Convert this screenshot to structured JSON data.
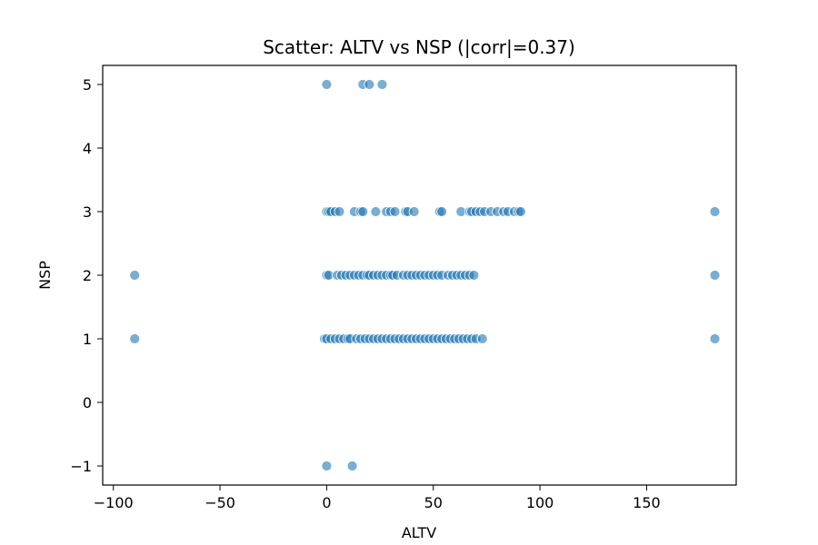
{
  "chart_data": {
    "type": "scatter",
    "title": "Scatter: ALTV vs NSP (|corr|=0.37)",
    "xlabel": "ALTV",
    "ylabel": "NSP",
    "xlim": [
      -105,
      192
    ],
    "ylim": [
      -1.3,
      5.3
    ],
    "xticks": [
      -100,
      -50,
      0,
      50,
      100,
      150
    ],
    "xtick_labels": [
      "−100",
      "−50",
      "0",
      "50",
      "100",
      "150"
    ],
    "yticks": [
      -1,
      0,
      1,
      2,
      3,
      4,
      5
    ],
    "ytick_labels": [
      "−1",
      "0",
      "1",
      "2",
      "3",
      "4",
      "5"
    ],
    "grid": false,
    "point_color": "#1f77b4",
    "point_opacity": 0.6,
    "points": [
      {
        "x": 0,
        "y": 5
      },
      {
        "x": 17,
        "y": 5
      },
      {
        "x": 20,
        "y": 5
      },
      {
        "x": 26,
        "y": 5
      },
      {
        "x": 0,
        "y": 3
      },
      {
        "x": 1,
        "y": 3
      },
      {
        "x": 2,
        "y": 3
      },
      {
        "x": 4,
        "y": 3
      },
      {
        "x": 6,
        "y": 3
      },
      {
        "x": 13,
        "y": 3
      },
      {
        "x": 16,
        "y": 3
      },
      {
        "x": 17,
        "y": 3
      },
      {
        "x": 23,
        "y": 3
      },
      {
        "x": 28,
        "y": 3
      },
      {
        "x": 30,
        "y": 3
      },
      {
        "x": 32,
        "y": 3
      },
      {
        "x": 37,
        "y": 3
      },
      {
        "x": 38,
        "y": 3
      },
      {
        "x": 41,
        "y": 3
      },
      {
        "x": 53,
        "y": 3
      },
      {
        "x": 54,
        "y": 3
      },
      {
        "x": 63,
        "y": 3
      },
      {
        "x": 67,
        "y": 3
      },
      {
        "x": 68,
        "y": 3
      },
      {
        "x": 70,
        "y": 3
      },
      {
        "x": 72,
        "y": 3
      },
      {
        "x": 74,
        "y": 3
      },
      {
        "x": 77,
        "y": 3
      },
      {
        "x": 80,
        "y": 3
      },
      {
        "x": 83,
        "y": 3
      },
      {
        "x": 85,
        "y": 3
      },
      {
        "x": 88,
        "y": 3
      },
      {
        "x": 90,
        "y": 3
      },
      {
        "x": 91,
        "y": 3
      },
      {
        "x": 182,
        "y": 3
      },
      {
        "x": -90,
        "y": 2
      },
      {
        "x": 0,
        "y": 2
      },
      {
        "x": 1,
        "y": 2
      },
      {
        "x": 5,
        "y": 2
      },
      {
        "x": 7,
        "y": 2
      },
      {
        "x": 9,
        "y": 2
      },
      {
        "x": 11,
        "y": 2
      },
      {
        "x": 13,
        "y": 2
      },
      {
        "x": 15,
        "y": 2
      },
      {
        "x": 17,
        "y": 2
      },
      {
        "x": 19,
        "y": 2
      },
      {
        "x": 20,
        "y": 2
      },
      {
        "x": 22,
        "y": 2
      },
      {
        "x": 24,
        "y": 2
      },
      {
        "x": 26,
        "y": 2
      },
      {
        "x": 28,
        "y": 2
      },
      {
        "x": 30,
        "y": 2
      },
      {
        "x": 31,
        "y": 2
      },
      {
        "x": 33,
        "y": 2
      },
      {
        "x": 36,
        "y": 2
      },
      {
        "x": 38,
        "y": 2
      },
      {
        "x": 40,
        "y": 2
      },
      {
        "x": 42,
        "y": 2
      },
      {
        "x": 44,
        "y": 2
      },
      {
        "x": 46,
        "y": 2
      },
      {
        "x": 48,
        "y": 2
      },
      {
        "x": 50,
        "y": 2
      },
      {
        "x": 52,
        "y": 2
      },
      {
        "x": 54,
        "y": 2
      },
      {
        "x": 57,
        "y": 2
      },
      {
        "x": 59,
        "y": 2
      },
      {
        "x": 61,
        "y": 2
      },
      {
        "x": 63,
        "y": 2
      },
      {
        "x": 65,
        "y": 2
      },
      {
        "x": 67,
        "y": 2
      },
      {
        "x": 69,
        "y": 2
      },
      {
        "x": 182,
        "y": 2
      },
      {
        "x": -90,
        "y": 1
      },
      {
        "x": -1,
        "y": 1
      },
      {
        "x": 0,
        "y": 1
      },
      {
        "x": 2,
        "y": 1
      },
      {
        "x": 4,
        "y": 1
      },
      {
        "x": 6,
        "y": 1
      },
      {
        "x": 8,
        "y": 1
      },
      {
        "x": 10,
        "y": 1
      },
      {
        "x": 11,
        "y": 1
      },
      {
        "x": 14,
        "y": 1
      },
      {
        "x": 16,
        "y": 1
      },
      {
        "x": 18,
        "y": 1
      },
      {
        "x": 20,
        "y": 1
      },
      {
        "x": 22,
        "y": 1
      },
      {
        "x": 24,
        "y": 1
      },
      {
        "x": 26,
        "y": 1
      },
      {
        "x": 28,
        "y": 1
      },
      {
        "x": 30,
        "y": 1
      },
      {
        "x": 32,
        "y": 1
      },
      {
        "x": 34,
        "y": 1
      },
      {
        "x": 36,
        "y": 1
      },
      {
        "x": 38,
        "y": 1
      },
      {
        "x": 40,
        "y": 1
      },
      {
        "x": 42,
        "y": 1
      },
      {
        "x": 44,
        "y": 1
      },
      {
        "x": 46,
        "y": 1
      },
      {
        "x": 48,
        "y": 1
      },
      {
        "x": 50,
        "y": 1
      },
      {
        "x": 52,
        "y": 1
      },
      {
        "x": 54,
        "y": 1
      },
      {
        "x": 56,
        "y": 1
      },
      {
        "x": 58,
        "y": 1
      },
      {
        "x": 60,
        "y": 1
      },
      {
        "x": 62,
        "y": 1
      },
      {
        "x": 64,
        "y": 1
      },
      {
        "x": 66,
        "y": 1
      },
      {
        "x": 68,
        "y": 1
      },
      {
        "x": 70,
        "y": 1
      },
      {
        "x": 73,
        "y": 1
      },
      {
        "x": 182,
        "y": 1
      },
      {
        "x": 0,
        "y": -1
      },
      {
        "x": 12,
        "y": -1
      }
    ]
  }
}
